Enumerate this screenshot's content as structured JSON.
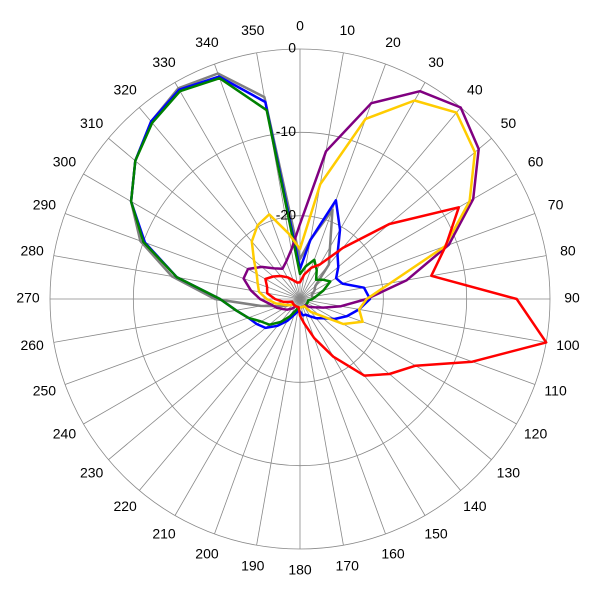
{
  "chart_data": {
    "type": "polar",
    "x": [
      0,
      10,
      20,
      30,
      40,
      50,
      60,
      70,
      80,
      90,
      100,
      110,
      120,
      130,
      140,
      150,
      160,
      170,
      180,
      190,
      200,
      210,
      220,
      230,
      240,
      250,
      260,
      270,
      280,
      290,
      300,
      310,
      320,
      330,
      340,
      350
    ],
    "ylim": [
      -30,
      0
    ],
    "yticks": [
      -20,
      -10,
      0
    ],
    "grid": true,
    "series": [
      {
        "color": "#808080",
        "values": [
          -25.2,
          -22.8,
          -18.6,
          -22.8,
          -24.6,
          -27.6,
          -28,
          -28.5,
          -28.5,
          -28.5,
          -29,
          -29,
          -29,
          -29,
          -29,
          -29,
          -29,
          -29,
          -29,
          -29,
          -29,
          -29,
          -29,
          -29,
          -28.5,
          -27.5,
          -25.2,
          -19.8,
          -14.4,
          -9.6,
          -6.6,
          -4.2,
          -2.2,
          -0.8,
          -1.2,
          -5.4
        ]
      },
      {
        "color": "#0000ff",
        "values": [
          -26.4,
          -22.8,
          -17.4,
          -20.4,
          -23,
          -24,
          -25,
          -24.6,
          -22.2,
          -21.6,
          -22.8,
          -24,
          -25.2,
          -26.4,
          -27,
          -27.6,
          -28,
          -28,
          -28.5,
          -28.5,
          -28,
          -27,
          -25.8,
          -24.6,
          -24,
          -23.4,
          -22.2,
          -20.4,
          -15,
          -10.2,
          -6.6,
          -4.2,
          -2.2,
          -1,
          -1.6,
          -6
        ]
      },
      {
        "color": "#008000",
        "values": [
          -27,
          -26,
          -25,
          -26,
          -27,
          -26.4,
          -25.8,
          -27,
          -28,
          -28.5,
          -29,
          -29,
          -29,
          -29,
          -29,
          -29,
          -29,
          -29,
          -29,
          -29,
          -28.5,
          -27.6,
          -26.4,
          -25.2,
          -24.6,
          -23.4,
          -22.2,
          -20.4,
          -15,
          -10,
          -6.6,
          -4.2,
          -2.4,
          -1.2,
          -1.8,
          -7
        ]
      },
      {
        "color": "#800080",
        "values": [
          -21,
          -12,
          -5,
          -1.2,
          0,
          -2,
          -6,
          -11,
          -17,
          -22,
          -25,
          -27,
          -28,
          -28.5,
          -29,
          -29,
          -29,
          -29,
          -29,
          -29,
          -29,
          -29,
          -28.5,
          -28,
          -27.6,
          -27,
          -26.4,
          -25.2,
          -24,
          -22.8,
          -22.8,
          -24,
          -25.2,
          -25.8,
          -25.2,
          -24
        ]
      },
      {
        "color": "#ffcc00",
        "values": [
          -24,
          -16,
          -7,
          -2.5,
          -0.8,
          -2.6,
          -6.5,
          -11.5,
          -19,
          -22,
          -22.8,
          -22,
          -24,
          -27,
          -28,
          -29,
          -29,
          -29,
          -29,
          -29,
          -29,
          -29,
          -29,
          -29,
          -28.5,
          -28,
          -27,
          -26,
          -25,
          -24.6,
          -24,
          -22.8,
          -21,
          -19.8,
          -19.2,
          -22
        ]
      },
      {
        "color": "#ff0000",
        "values": [
          -28,
          -27,
          -26,
          -25.2,
          -22,
          -16,
          -8,
          -11.4,
          -14,
          -4,
          0,
          -8,
          -14,
          -16,
          -18,
          -22,
          -25,
          -27,
          -28,
          -29,
          -29,
          -29,
          -29,
          -29,
          -29,
          -29,
          -28,
          -27,
          -26,
          -25.8,
          -25.2,
          -25.8,
          -26.4,
          -27,
          -27.6,
          -28
        ]
      }
    ]
  }
}
